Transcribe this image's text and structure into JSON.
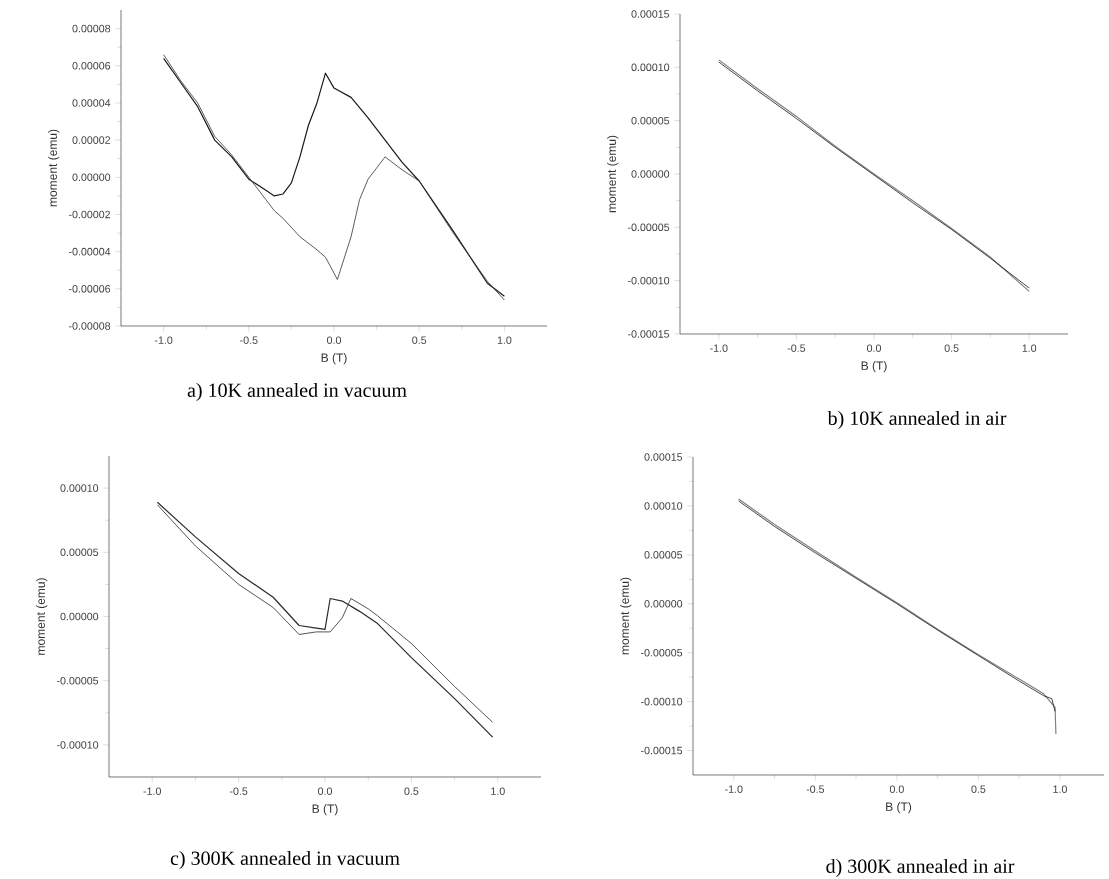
{
  "chart_data": [
    {
      "type": "line",
      "xlabel": "B (T)",
      "ylabel": "moment (emu)",
      "annotations": [
        "a) 10K annealed in vacuum"
      ],
      "xlim": [
        -1.25,
        1.25
      ],
      "ylim": [
        -8e-05,
        9e-05
      ],
      "xticks": [
        {
          "value": -1,
          "label": "-1.0"
        },
        {
          "value": -0.5,
          "label": "-0.5"
        },
        {
          "value": 0,
          "label": "0.0"
        },
        {
          "value": 0.5,
          "label": "0.5"
        },
        {
          "value": 1,
          "label": "1.0"
        }
      ],
      "yticks": [
        {
          "value": -8e-05,
          "label": "-0.00008"
        },
        {
          "value": -6e-05,
          "label": "-0.00006"
        },
        {
          "value": -4e-05,
          "label": "-0.00004"
        },
        {
          "value": -2e-05,
          "label": "-0.00002"
        },
        {
          "value": 0,
          "label": "0.00000"
        },
        {
          "value": 2e-05,
          "label": "0.00002"
        },
        {
          "value": 4e-05,
          "label": "0.00004"
        },
        {
          "value": 6e-05,
          "label": "0.00006"
        },
        {
          "value": 8e-05,
          "label": "0.00008"
        }
      ],
      "series": [
        {
          "color": "#1a1a1a",
          "x": [
            1.0,
            0.9,
            0.7,
            0.5,
            0.4,
            0.3,
            0.2,
            0.1,
            0.0,
            -0.05,
            -0.1,
            -0.15,
            -0.2,
            -0.25,
            -0.3,
            -0.35,
            -0.4,
            -0.5,
            -0.6,
            -0.7,
            -0.8,
            -0.9,
            -1.0
          ],
          "values": [
            -6.4e-05,
            -5.7e-05,
            -2.9e-05,
            -2e-06,
            8e-06,
            2e-05,
            3.2e-05,
            4.3e-05,
            4.8e-05,
            5.6e-05,
            4e-05,
            2.8e-05,
            1.1e-05,
            -3e-06,
            -9e-06,
            -1e-05,
            -7e-06,
            -1e-06,
            1.1e-05,
            2e-05,
            3.8e-05,
            5.1e-05,
            6.4e-05
          ]
        },
        {
          "color": "#333333",
          "x": [
            -1.0,
            -0.9,
            -0.8,
            -0.7,
            -0.6,
            -0.5,
            -0.4,
            -0.35,
            -0.3,
            -0.2,
            -0.1,
            -0.05,
            0.02,
            0.1,
            0.15,
            0.2,
            0.3,
            0.4,
            0.5,
            0.7,
            0.9,
            1.0
          ],
          "values": [
            6.6e-05,
            5.2e-05,
            4e-05,
            2.2e-05,
            1.2e-05,
            0.0,
            -1.2e-05,
            -1.8e-05,
            -2.2e-05,
            -3.2e-05,
            -3.9e-05,
            -4.3e-05,
            -5.5e-05,
            -3.2e-05,
            -1.2e-05,
            -1e-06,
            1.1e-05,
            4e-06,
            -2e-06,
            -3e-05,
            -5.6e-05,
            -6.6e-05
          ]
        }
      ]
    },
    {
      "type": "line",
      "xlabel": "B (T)",
      "ylabel": "moment (emu)",
      "annotations": [
        "b) 10K annealed in air"
      ],
      "xlim": [
        -1.25,
        1.25
      ],
      "ylim": [
        -0.00015,
        0.00015
      ],
      "xticks": [
        {
          "value": -1,
          "label": "-1.0"
        },
        {
          "value": -0.5,
          "label": "-0.5"
        },
        {
          "value": 0,
          "label": "0.0"
        },
        {
          "value": 0.5,
          "label": "0.5"
        },
        {
          "value": 1,
          "label": "1.0"
        }
      ],
      "yticks": [
        {
          "value": -0.00015,
          "label": "-0.00015"
        },
        {
          "value": -0.0001,
          "label": "-0.00010"
        },
        {
          "value": -5e-05,
          "label": "-0.00005"
        },
        {
          "value": 0,
          "label": "0.00000"
        },
        {
          "value": 5e-05,
          "label": "0.00005"
        },
        {
          "value": 0.0001,
          "label": "0.00010"
        },
        {
          "value": 0.00015,
          "label": "0.00015"
        }
      ],
      "series": [
        {
          "color": "#808080",
          "x": [
            -1.0,
            -0.75,
            -0.5,
            -0.25,
            0.0,
            0.25,
            0.5,
            0.75,
            1.0
          ],
          "values": [
            0.000107,
            8e-05,
            5.4e-05,
            2.6e-05,
            0.0,
            -2.5e-05,
            -5.1e-05,
            -7.8e-05,
            -0.00011
          ]
        },
        {
          "color": "#1a1a1a",
          "x": [
            -1.0,
            -0.75,
            -0.5,
            -0.25,
            0.0,
            0.25,
            0.5,
            0.75,
            1.0
          ],
          "values": [
            0.000105,
            7.8e-05,
            5.2e-05,
            2.5e-05,
            -1e-06,
            -2.7e-05,
            -5.2e-05,
            -7.9e-05,
            -0.000107
          ]
        }
      ]
    },
    {
      "type": "line",
      "xlabel": "B (T)",
      "ylabel": "moment (emu)",
      "annotations": [
        "c) 300K annealed in vacuum"
      ],
      "xlim": [
        -1.25,
        1.25
      ],
      "ylim": [
        -0.000125,
        0.000125
      ],
      "xticks": [
        {
          "value": -1,
          "label": "-1.0"
        },
        {
          "value": -0.5,
          "label": "-0.5"
        },
        {
          "value": 0,
          "label": "0.0"
        },
        {
          "value": 0.5,
          "label": "0.5"
        },
        {
          "value": 1,
          "label": "1.0"
        }
      ],
      "yticks": [
        {
          "value": -0.0001,
          "label": "-0.00010"
        },
        {
          "value": -5e-05,
          "label": "-0.00005"
        },
        {
          "value": 0,
          "label": "0.00000"
        },
        {
          "value": 5e-05,
          "label": "0.00005"
        },
        {
          "value": 0.0001,
          "label": "0.00010"
        }
      ],
      "series": [
        {
          "color": "#2a2a2a",
          "x": [
            -0.97,
            -0.75,
            -0.5,
            -0.3,
            -0.15,
            -0.05,
            0.0,
            0.03,
            0.1,
            0.2,
            0.3,
            0.5,
            0.75,
            0.97
          ],
          "values": [
            8.9e-05,
            6.2e-05,
            3.35e-05,
            1.5e-05,
            -7e-06,
            -9e-06,
            -1e-05,
            1.4e-05,
            1.2e-05,
            4e-06,
            -5e-06,
            -3.2e-05,
            -6.4e-05,
            -9.4e-05
          ]
        },
        {
          "color": "#2a2a2a",
          "x": [
            -0.97,
            -0.75,
            -0.5,
            -0.3,
            -0.15,
            -0.05,
            0.03,
            0.1,
            0.15,
            0.25,
            0.3,
            0.5,
            0.75,
            0.97
          ],
          "values": [
            8.7e-05,
            5.5e-05,
            2.5e-05,
            7e-06,
            -1.4e-05,
            -1.2e-05,
            -1.2e-05,
            -1e-06,
            1.4e-05,
            6e-06,
            1e-06,
            -2.1e-05,
            -5.45e-05,
            -8.24e-05
          ]
        }
      ]
    },
    {
      "type": "line",
      "xlabel": "B (T)",
      "ylabel": "moment (emu)",
      "annotations": [
        "d) 300K annealed in air"
      ],
      "xlim": [
        -1.25,
        1.27
      ],
      "ylim": [
        -0.000175,
        0.00015
      ],
      "xticks": [
        {
          "value": -1,
          "label": "-1.0"
        },
        {
          "value": -0.5,
          "label": "-0.5"
        },
        {
          "value": 0,
          "label": "0.0"
        },
        {
          "value": 0.5,
          "label": "0.5"
        },
        {
          "value": 1,
          "label": "1.0"
        }
      ],
      "yticks": [
        {
          "value": -0.00015,
          "label": "-0.00015"
        },
        {
          "value": -0.0001,
          "label": "-0.00010"
        },
        {
          "value": -5e-05,
          "label": "-0.00005"
        },
        {
          "value": 0,
          "label": "0.00000"
        },
        {
          "value": 5e-05,
          "label": "0.00005"
        },
        {
          "value": 0.0001,
          "label": "0.00010"
        },
        {
          "value": 0.00015,
          "label": "0.00015"
        }
      ],
      "series": [
        {
          "color": "#808080",
          "x": [
            -0.97,
            -0.75,
            -0.5,
            -0.25,
            0.0,
            0.25,
            0.5,
            0.75,
            0.9,
            0.97,
            0.975
          ],
          "values": [
            0.000107,
            8.1e-05,
            5.4e-05,
            2.7e-05,
            1e-06,
            -2.6e-05,
            -5.2e-05,
            -7.7e-05,
            -9.2e-05,
            -0.000106,
            -0.000133
          ]
        },
        {
          "color": "#1a1a1a",
          "x": [
            -0.97,
            -0.75,
            -0.5,
            -0.25,
            0.0,
            0.25,
            0.5,
            0.75,
            0.9,
            0.95,
            0.97
          ],
          "values": [
            0.000105,
            7.9e-05,
            5.2e-05,
            2.6e-05,
            0.0,
            -2.7e-05,
            -5.3e-05,
            -7.9e-05,
            -9.4e-05,
            -9.7e-05,
            -0.00011
          ]
        }
      ]
    }
  ]
}
